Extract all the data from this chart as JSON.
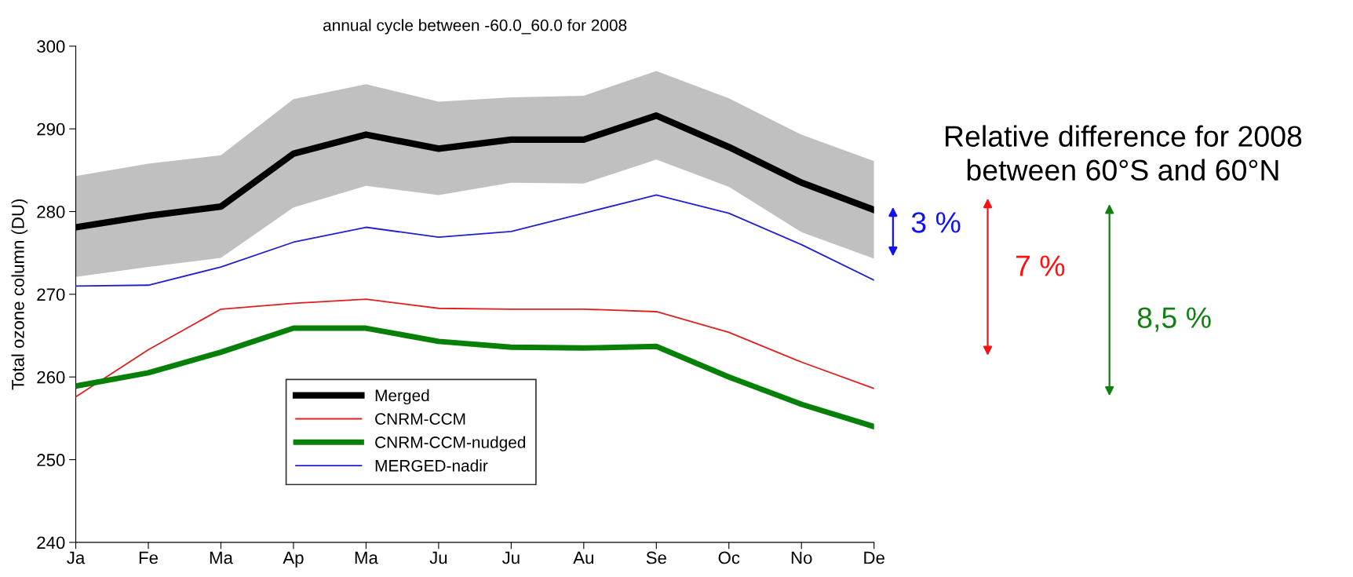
{
  "chart_data": {
    "type": "line",
    "title": "annual cycle between -60.0_60.0 for 2008",
    "ylabel": "Total ozone column (DU)",
    "categories": [
      "Ja",
      "Fe",
      "Ma",
      "Ap",
      "Ma",
      "Ju",
      "Ju",
      "Au",
      "Se",
      "Oc",
      "No",
      "De"
    ],
    "series": [
      {
        "name": "Merged",
        "color": "#000000",
        "values": [
          278.1,
          279.5,
          280.6,
          287.0,
          289.3,
          287.6,
          288.7,
          288.7,
          291.6,
          287.8,
          283.5,
          280.2
        ],
        "lower": [
          272.1,
          273.3,
          274.4,
          280.5,
          283.1,
          282.0,
          283.5,
          283.4,
          286.3,
          283.0,
          277.5,
          274.3
        ],
        "upper": [
          284.3,
          285.8,
          286.8,
          293.6,
          295.4,
          293.3,
          293.8,
          294.0,
          297.0,
          293.7,
          289.3,
          286.1
        ]
      },
      {
        "name": "CNRM-CCM",
        "color": "#e02020",
        "values": [
          257.6,
          263.3,
          268.2,
          268.9,
          269.4,
          268.3,
          268.2,
          268.2,
          267.9,
          265.4,
          261.8,
          258.6
        ]
      },
      {
        "name": "CNRM-CCM-nudged",
        "color": "#078007",
        "values": [
          258.9,
          260.5,
          263.0,
          265.9,
          265.9,
          264.3,
          263.6,
          263.5,
          263.7,
          260.0,
          256.7,
          254.0
        ]
      },
      {
        "name": "MERGED-nadir",
        "color": "#2020d0",
        "values": [
          271.0,
          271.1,
          273.3,
          276.3,
          278.1,
          276.9,
          277.6,
          279.8,
          282.0,
          279.8,
          276.0,
          271.7
        ]
      }
    ],
    "ylim": [
      240,
      300
    ],
    "yticks": [
      240,
      250,
      260,
      270,
      280,
      290,
      300
    ],
    "grid": false,
    "legend": "bottom",
    "marker": "none",
    "line_style": "solid",
    "annotations": [
      "Relative difference for 2008\nbetween 60°S and 60°N",
      "3 %",
      "7 %",
      "8,5 %"
    ]
  }
}
